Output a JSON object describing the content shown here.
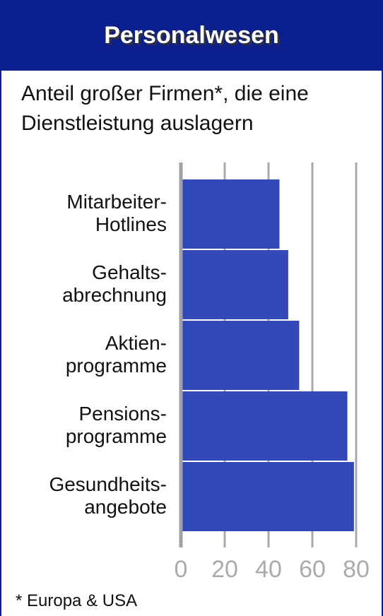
{
  "chart_data": {
    "type": "bar",
    "orientation": "horizontal",
    "title": "Personalwesen",
    "subtitle": "Anteil großer Firmen*, die eine\nDienstleistung auslagern",
    "categories": [
      "Mitarbeiter-\nHotlines",
      "Gehalts-\nabrechnung",
      "Aktien-\nprogramme",
      "Pensions-\nprogramme",
      "Gesundheits-\nangebote"
    ],
    "values": [
      45,
      49,
      54,
      76,
      79
    ],
    "color": "#3349b8",
    "xlim": [
      0,
      80
    ],
    "xticks": [
      0,
      20,
      40,
      60,
      80
    ],
    "grid": true,
    "footnote": "* Europa & USA"
  }
}
